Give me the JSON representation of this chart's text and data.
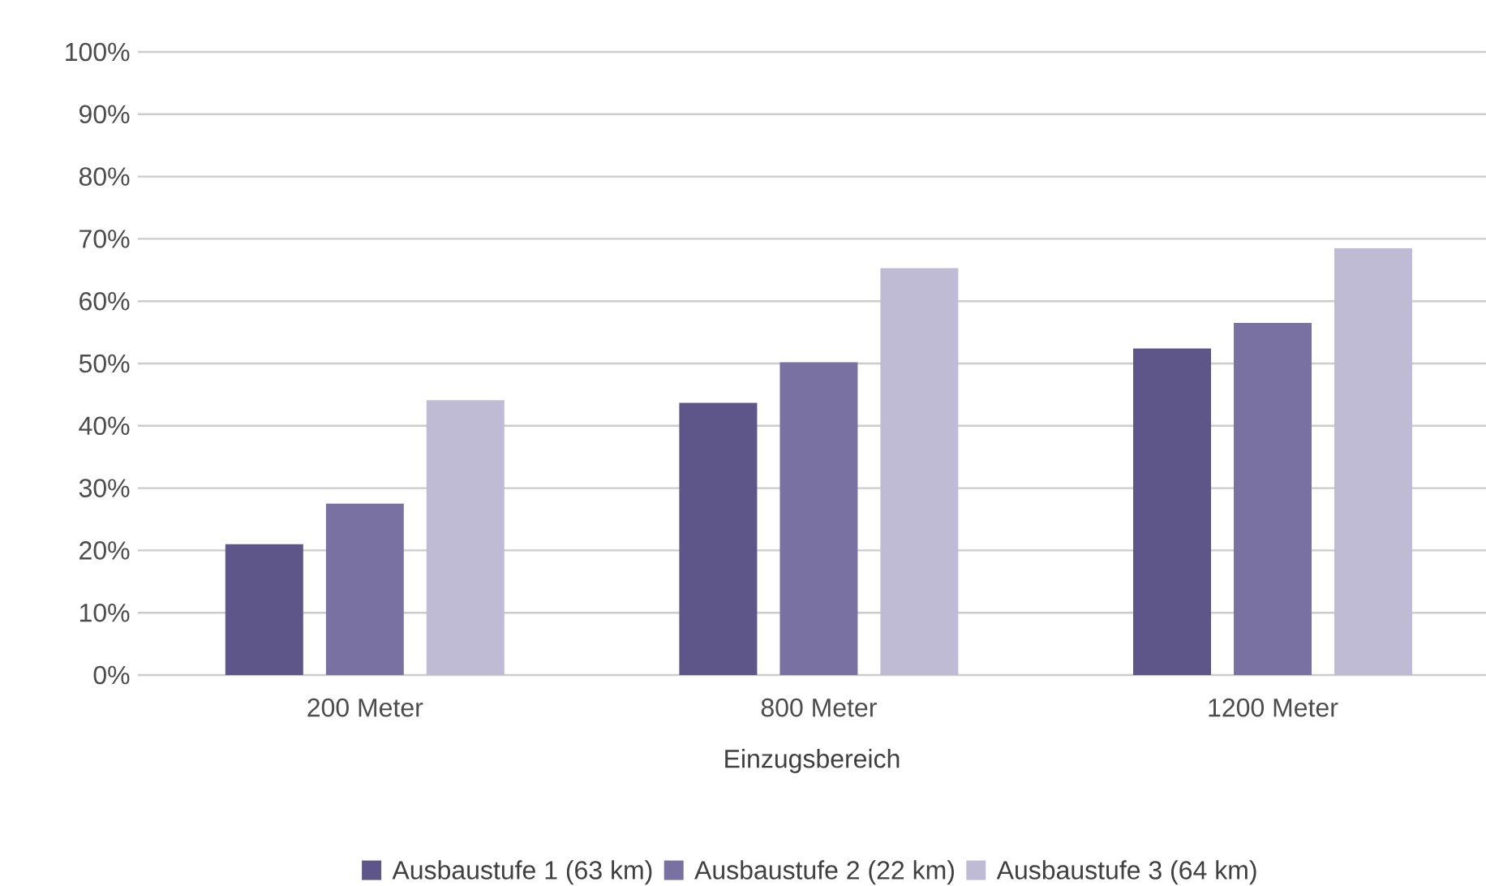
{
  "chart_data": {
    "type": "bar",
    "xlabel": "Einzugsbereich",
    "categories": [
      "200 Meter",
      "800 Meter",
      "1200 Meter"
    ],
    "series": [
      {
        "name": "Ausbaustufe 1 (63 km)",
        "color": "#5e5589",
        "values": [
          21,
          43.7,
          52.4
        ]
      },
      {
        "name": "Ausbaustufe 2 (22 km)",
        "color": "#7a71a3",
        "values": [
          27.5,
          50.2,
          56.5
        ]
      },
      {
        "name": "Ausbaustufe 3 (64 km)",
        "color": "#bfbbd5",
        "values": [
          44.1,
          65.3,
          68.5
        ]
      }
    ],
    "ylim": [
      0,
      100
    ],
    "yticks": [
      {
        "value": 0,
        "label": "0%"
      },
      {
        "value": 10,
        "label": "10%"
      },
      {
        "value": 20,
        "label": "20%"
      },
      {
        "value": 30,
        "label": "30%"
      },
      {
        "value": 40,
        "label": "40%"
      },
      {
        "value": 50,
        "label": "50%"
      },
      {
        "value": 60,
        "label": "60%"
      },
      {
        "value": 70,
        "label": "70%"
      },
      {
        "value": 80,
        "label": "80%"
      },
      {
        "value": 90,
        "label": "90%"
      },
      {
        "value": 100,
        "label": "100%"
      }
    ],
    "grid": "y",
    "legend": "bottom"
  }
}
